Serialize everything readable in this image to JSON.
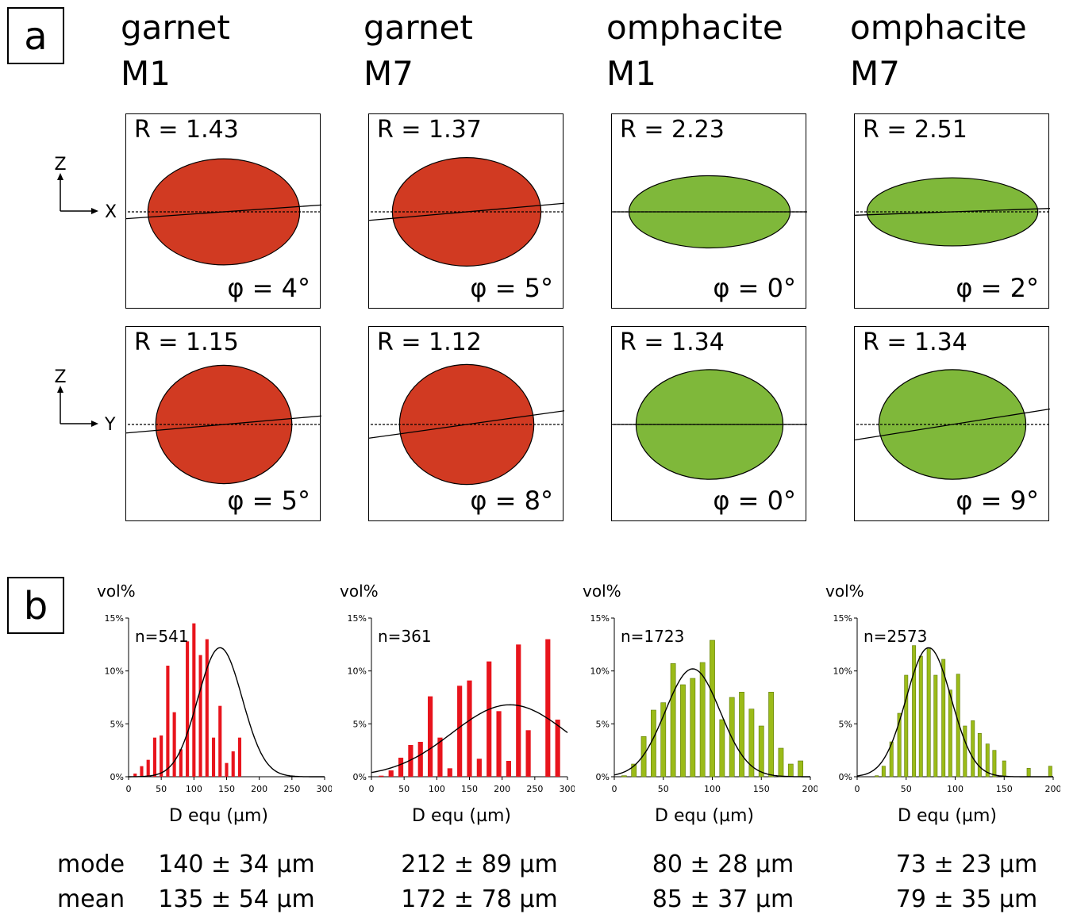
{
  "panel_a": {
    "letter": "a",
    "row_axes": [
      {
        "vertical": "Z",
        "horizontal": "X"
      },
      {
        "vertical": "Z",
        "horizontal": "Y"
      }
    ],
    "columns": [
      {
        "mineral": "garnet",
        "sample": "M1",
        "color": "#d13a22",
        "sections": [
          {
            "R": "R = 1.43",
            "phi": "φ = 4°",
            "ratio": 1.43,
            "angle": 4
          },
          {
            "R": "R = 1.15",
            "phi": "φ = 5°",
            "ratio": 1.15,
            "angle": 5
          }
        ]
      },
      {
        "mineral": "garnet",
        "sample": "M7",
        "color": "#d13a22",
        "sections": [
          {
            "R": "R = 1.37",
            "phi": "φ = 5°",
            "ratio": 1.37,
            "angle": 5
          },
          {
            "R": "R = 1.12",
            "phi": "φ = 8°",
            "ratio": 1.12,
            "angle": 8
          }
        ]
      },
      {
        "mineral": "omphacite",
        "sample": "M1",
        "color": "#7fb83a",
        "sections": [
          {
            "R": "R = 2.23",
            "phi": "φ = 0°",
            "ratio": 2.23,
            "angle": 0
          },
          {
            "R": "R = 1.34",
            "phi": "φ = 0°",
            "ratio": 1.34,
            "angle": 0
          }
        ]
      },
      {
        "mineral": "omphacite",
        "sample": "M7",
        "color": "#7fb83a",
        "sections": [
          {
            "R": "R = 2.51",
            "phi": "φ = 2°",
            "ratio": 2.51,
            "angle": 2
          },
          {
            "R": "R = 1.34",
            "phi": "φ = 9°",
            "ratio": 1.34,
            "angle": 9
          }
        ]
      }
    ]
  },
  "panel_b": {
    "letter": "b",
    "stat_labels": {
      "mode": "mode",
      "mean": "mean"
    }
  },
  "chart_data": [
    {
      "type": "bar",
      "ylabel": "vol%",
      "xlabel": "D equ (µm)",
      "n_label": "n=541",
      "bar_color": "#e8141c",
      "xlim": [
        0,
        300
      ],
      "xticks": [
        0,
        50,
        100,
        150,
        200,
        250,
        300
      ],
      "ylim": [
        0,
        15
      ],
      "yticks": [
        "0%",
        "5%",
        "10%",
        "15%"
      ],
      "bars_x": [
        10,
        20,
        30,
        40,
        50,
        60,
        70,
        80,
        90,
        100,
        110,
        120,
        130,
        140,
        150,
        160,
        170,
        180,
        190,
        200,
        210,
        220,
        230,
        240,
        250,
        260
      ],
      "bars_y": [
        0.3,
        1.0,
        1.6,
        3.7,
        3.9,
        10.5,
        6.1,
        2.6,
        12.8,
        14.5,
        11.5,
        13.0,
        3.7,
        6.7,
        1.3,
        2.4,
        3.7,
        0,
        0,
        0,
        0,
        0,
        0,
        0,
        0,
        0
      ],
      "curve": {
        "mu": 140,
        "sigma": 34,
        "peak": 12.2
      },
      "mode": "140 ± 34 µm",
      "mean": "135 ± 54 µm"
    },
    {
      "type": "bar",
      "ylabel": "vol%",
      "xlabel": "D equ (µm)",
      "n_label": "n=361",
      "bar_color": "#e8141c",
      "xlim": [
        0,
        300
      ],
      "xticks": [
        0,
        50,
        100,
        150,
        200,
        250,
        300
      ],
      "ylim": [
        0,
        15
      ],
      "yticks": [
        "0%",
        "5%",
        "10%",
        "15%"
      ],
      "bars_x": [
        15,
        30,
        45,
        60,
        75,
        90,
        105,
        120,
        135,
        150,
        165,
        180,
        195,
        210,
        225,
        240,
        255,
        270,
        285
      ],
      "bars_y": [
        0.1,
        0.6,
        1.8,
        3.0,
        3.3,
        7.6,
        3.7,
        0.8,
        8.6,
        9.1,
        1.7,
        10.9,
        6.2,
        1.5,
        12.5,
        4.4,
        0,
        13.0,
        5.4
      ],
      "curve": {
        "mu": 212,
        "sigma": 89,
        "peak": 6.8
      },
      "mode": "212 ± 89 µm",
      "mean": "172 ± 78 µm"
    },
    {
      "type": "bar",
      "ylabel": "vol%",
      "xlabel": "D equ (µm)",
      "n_label": "n=1723",
      "bar_color": "#9bbb18",
      "xlim": [
        0,
        200
      ],
      "xticks": [
        0,
        50,
        100,
        150,
        200
      ],
      "ylim": [
        0,
        15
      ],
      "yticks": [
        "0%",
        "5%",
        "10%",
        "15%"
      ],
      "bars_x": [
        10,
        20,
        30,
        40,
        50,
        60,
        70,
        80,
        90,
        100,
        110,
        120,
        130,
        140,
        150,
        160,
        170
      ],
      "bars_y": [
        0.1,
        1.2,
        3.8,
        6.3,
        7.0,
        10.7,
        8.7,
        9.3,
        10.8,
        12.9,
        5.4,
        7.5,
        8.0,
        6.4,
        4.8,
        8.0,
        2.7
      ],
      "bars_y_extra": [
        1.2,
        1.5
      ],
      "curve": {
        "mu": 80,
        "sigma": 28,
        "peak": 10.2
      },
      "mode": "80 ± 28 µm",
      "mean": "85 ± 37 µm"
    },
    {
      "type": "bar",
      "ylabel": "vol%",
      "xlabel": "D equ (µm)",
      "n_label": "n=2573",
      "bar_color": "#9bbb18",
      "xlim": [
        0,
        200
      ],
      "xticks": [
        0,
        50,
        100,
        150,
        200
      ],
      "ylim": [
        0,
        15
      ],
      "yticks": [
        "0%",
        "5%",
        "10%",
        "15%"
      ],
      "bars_x": [
        15,
        20,
        25,
        30,
        35,
        40,
        45,
        50,
        55,
        60,
        65,
        70,
        75,
        80,
        85,
        90,
        95,
        100,
        105,
        110,
        115,
        120,
        125,
        130,
        135,
        140,
        145,
        150,
        155,
        160,
        165,
        170,
        175,
        180,
        185,
        190,
        195,
        200
      ],
      "bars_y": [
        0.1,
        1.0,
        3.3,
        6.0,
        9.6,
        12.4,
        11.4,
        12.1,
        9.6,
        11.1,
        8.2,
        9.7,
        4.8,
        5.3,
        4.1,
        3.1,
        2.5,
        1.5,
        0.8,
        1.0
      ],
      "bars_x_spaced": [
        20,
        27,
        35,
        43,
        50,
        58,
        65,
        73,
        80,
        88,
        95,
        103,
        110,
        118,
        125,
        133,
        140,
        150,
        175,
        197
      ],
      "curve": {
        "mu": 73,
        "sigma": 23,
        "peak": 12.2
      },
      "mode": "73 ± 23 µm",
      "mean": "79 ± 35 µm"
    }
  ]
}
